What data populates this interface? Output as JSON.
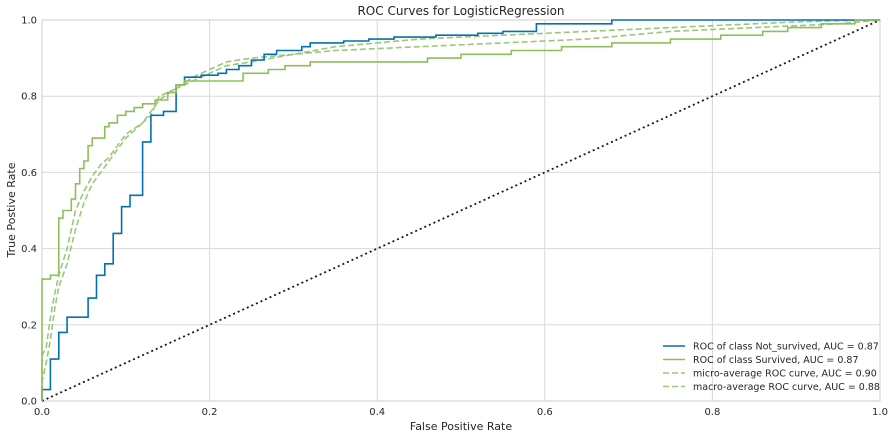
{
  "chart_data": {
    "type": "line",
    "title": "ROC Curves for LogisticRegression",
    "xlabel": "False Positive Rate",
    "ylabel": "True Postive Rate",
    "xlim": [
      0,
      1
    ],
    "ylim": [
      0,
      1
    ],
    "xticks": [
      "0.0",
      "0.2",
      "0.4",
      "0.6",
      "0.8",
      "1.0"
    ],
    "yticks": [
      "0.0",
      "0.2",
      "0.4",
      "0.6",
      "0.8",
      "1.0"
    ],
    "grid": true,
    "legend_position": "lower-right",
    "series": [
      {
        "name": "ROC of class Not_survived, AUC = 0.87",
        "color": "#0072b2",
        "style": "solid",
        "points": [
          [
            0,
            0
          ],
          [
            0,
            0.03
          ],
          [
            0.01,
            0.03
          ],
          [
            0.01,
            0.11
          ],
          [
            0.02,
            0.11
          ],
          [
            0.02,
            0.18
          ],
          [
            0.03,
            0.18
          ],
          [
            0.03,
            0.22
          ],
          [
            0.055,
            0.22
          ],
          [
            0.055,
            0.27
          ],
          [
            0.065,
            0.27
          ],
          [
            0.065,
            0.33
          ],
          [
            0.075,
            0.33
          ],
          [
            0.075,
            0.36
          ],
          [
            0.085,
            0.36
          ],
          [
            0.085,
            0.44
          ],
          [
            0.095,
            0.44
          ],
          [
            0.095,
            0.51
          ],
          [
            0.105,
            0.51
          ],
          [
            0.105,
            0.54
          ],
          [
            0.12,
            0.54
          ],
          [
            0.12,
            0.68
          ],
          [
            0.13,
            0.68
          ],
          [
            0.13,
            0.75
          ],
          [
            0.145,
            0.75
          ],
          [
            0.145,
            0.76
          ],
          [
            0.16,
            0.76
          ],
          [
            0.16,
            0.83
          ],
          [
            0.17,
            0.83
          ],
          [
            0.17,
            0.85
          ],
          [
            0.19,
            0.85
          ],
          [
            0.19,
            0.855
          ],
          [
            0.21,
            0.855
          ],
          [
            0.21,
            0.86
          ],
          [
            0.22,
            0.86
          ],
          [
            0.22,
            0.87
          ],
          [
            0.235,
            0.87
          ],
          [
            0.235,
            0.88
          ],
          [
            0.25,
            0.88
          ],
          [
            0.25,
            0.895
          ],
          [
            0.265,
            0.895
          ],
          [
            0.265,
            0.91
          ],
          [
            0.28,
            0.91
          ],
          [
            0.28,
            0.92
          ],
          [
            0.31,
            0.92
          ],
          [
            0.31,
            0.93
          ],
          [
            0.32,
            0.93
          ],
          [
            0.32,
            0.94
          ],
          [
            0.36,
            0.94
          ],
          [
            0.36,
            0.945
          ],
          [
            0.39,
            0.945
          ],
          [
            0.39,
            0.95
          ],
          [
            0.42,
            0.95
          ],
          [
            0.42,
            0.955
          ],
          [
            0.47,
            0.955
          ],
          [
            0.47,
            0.96
          ],
          [
            0.52,
            0.96
          ],
          [
            0.52,
            0.965
          ],
          [
            0.55,
            0.965
          ],
          [
            0.55,
            0.97
          ],
          [
            0.59,
            0.97
          ],
          [
            0.59,
            0.99
          ],
          [
            0.68,
            0.99
          ],
          [
            0.68,
            1.0
          ],
          [
            1.0,
            1.0
          ]
        ]
      },
      {
        "name": "ROC of class Survived, AUC = 0.87",
        "color": "#8fbf5a",
        "style": "solid",
        "points": [
          [
            0,
            0
          ],
          [
            0,
            0.32
          ],
          [
            0.01,
            0.32
          ],
          [
            0.01,
            0.33
          ],
          [
            0.02,
            0.33
          ],
          [
            0.02,
            0.48
          ],
          [
            0.025,
            0.48
          ],
          [
            0.025,
            0.5
          ],
          [
            0.035,
            0.5
          ],
          [
            0.035,
            0.53
          ],
          [
            0.04,
            0.53
          ],
          [
            0.04,
            0.57
          ],
          [
            0.045,
            0.57
          ],
          [
            0.045,
            0.61
          ],
          [
            0.05,
            0.61
          ],
          [
            0.05,
            0.63
          ],
          [
            0.055,
            0.63
          ],
          [
            0.055,
            0.67
          ],
          [
            0.06,
            0.67
          ],
          [
            0.06,
            0.69
          ],
          [
            0.075,
            0.69
          ],
          [
            0.075,
            0.72
          ],
          [
            0.08,
            0.72
          ],
          [
            0.08,
            0.73
          ],
          [
            0.09,
            0.73
          ],
          [
            0.09,
            0.75
          ],
          [
            0.1,
            0.75
          ],
          [
            0.1,
            0.76
          ],
          [
            0.11,
            0.76
          ],
          [
            0.11,
            0.77
          ],
          [
            0.12,
            0.77
          ],
          [
            0.12,
            0.78
          ],
          [
            0.135,
            0.78
          ],
          [
            0.135,
            0.79
          ],
          [
            0.15,
            0.79
          ],
          [
            0.15,
            0.81
          ],
          [
            0.16,
            0.81
          ],
          [
            0.16,
            0.83
          ],
          [
            0.17,
            0.83
          ],
          [
            0.17,
            0.84
          ],
          [
            0.24,
            0.84
          ],
          [
            0.24,
            0.86
          ],
          [
            0.27,
            0.86
          ],
          [
            0.27,
            0.87
          ],
          [
            0.29,
            0.87
          ],
          [
            0.29,
            0.88
          ],
          [
            0.32,
            0.88
          ],
          [
            0.32,
            0.89
          ],
          [
            0.46,
            0.89
          ],
          [
            0.46,
            0.9
          ],
          [
            0.5,
            0.9
          ],
          [
            0.5,
            0.91
          ],
          [
            0.56,
            0.91
          ],
          [
            0.56,
            0.92
          ],
          [
            0.62,
            0.92
          ],
          [
            0.62,
            0.93
          ],
          [
            0.68,
            0.93
          ],
          [
            0.68,
            0.94
          ],
          [
            0.75,
            0.94
          ],
          [
            0.75,
            0.95
          ],
          [
            0.81,
            0.95
          ],
          [
            0.81,
            0.96
          ],
          [
            0.86,
            0.96
          ],
          [
            0.86,
            0.97
          ],
          [
            0.89,
            0.97
          ],
          [
            0.89,
            0.98
          ],
          [
            0.93,
            0.98
          ],
          [
            0.93,
            0.99
          ],
          [
            0.97,
            0.99
          ],
          [
            0.97,
            1.0
          ],
          [
            1.0,
            1.0
          ]
        ]
      },
      {
        "name": "micro-average ROC curve, AUC = 0.90",
        "color": "#9cc779",
        "style": "dashed",
        "points": [
          [
            0,
            0
          ],
          [
            0,
            0.05
          ],
          [
            0.005,
            0.1
          ],
          [
            0.01,
            0.16
          ],
          [
            0.015,
            0.24
          ],
          [
            0.02,
            0.3
          ],
          [
            0.03,
            0.36
          ],
          [
            0.04,
            0.45
          ],
          [
            0.05,
            0.52
          ],
          [
            0.06,
            0.57
          ],
          [
            0.07,
            0.6
          ],
          [
            0.08,
            0.63
          ],
          [
            0.09,
            0.66
          ],
          [
            0.1,
            0.69
          ],
          [
            0.12,
            0.73
          ],
          [
            0.14,
            0.79
          ],
          [
            0.16,
            0.82
          ],
          [
            0.18,
            0.84
          ],
          [
            0.2,
            0.86
          ],
          [
            0.22,
            0.88
          ],
          [
            0.25,
            0.89
          ],
          [
            0.3,
            0.91
          ],
          [
            0.35,
            0.93
          ],
          [
            0.4,
            0.94
          ],
          [
            0.45,
            0.95
          ],
          [
            0.5,
            0.955
          ],
          [
            0.55,
            0.96
          ],
          [
            0.6,
            0.965
          ],
          [
            0.65,
            0.97
          ],
          [
            0.7,
            0.975
          ],
          [
            0.75,
            0.98
          ],
          [
            0.8,
            0.985
          ],
          [
            0.85,
            0.99
          ],
          [
            0.9,
            0.995
          ],
          [
            0.95,
            0.998
          ],
          [
            1.0,
            1.0
          ]
        ]
      },
      {
        "name": "macro-average ROC curve, AUC = 0.88",
        "color": "#9cc779",
        "style": "dashed",
        "points": [
          [
            0,
            0
          ],
          [
            0,
            0.12
          ],
          [
            0.005,
            0.14
          ],
          [
            0.01,
            0.22
          ],
          [
            0.015,
            0.28
          ],
          [
            0.02,
            0.33
          ],
          [
            0.03,
            0.4
          ],
          [
            0.04,
            0.5
          ],
          [
            0.05,
            0.55
          ],
          [
            0.06,
            0.59
          ],
          [
            0.07,
            0.62
          ],
          [
            0.08,
            0.64
          ],
          [
            0.09,
            0.67
          ],
          [
            0.1,
            0.7
          ],
          [
            0.12,
            0.73
          ],
          [
            0.13,
            0.75
          ],
          [
            0.14,
            0.8
          ],
          [
            0.16,
            0.82
          ],
          [
            0.18,
            0.85
          ],
          [
            0.2,
            0.87
          ],
          [
            0.22,
            0.89
          ],
          [
            0.25,
            0.9
          ],
          [
            0.3,
            0.91
          ],
          [
            0.35,
            0.92
          ],
          [
            0.4,
            0.925
          ],
          [
            0.45,
            0.93
          ],
          [
            0.5,
            0.935
          ],
          [
            0.55,
            0.94
          ],
          [
            0.6,
            0.945
          ],
          [
            0.65,
            0.95
          ],
          [
            0.7,
            0.96
          ],
          [
            0.75,
            0.97
          ],
          [
            0.8,
            0.975
          ],
          [
            0.85,
            0.98
          ],
          [
            0.9,
            0.985
          ],
          [
            0.95,
            0.99
          ],
          [
            1.0,
            1.0
          ]
        ]
      }
    ],
    "diagonal": {
      "points": [
        [
          0,
          0
        ],
        [
          1,
          1
        ]
      ],
      "color": "#1a1a1a",
      "style": "dotted"
    }
  }
}
